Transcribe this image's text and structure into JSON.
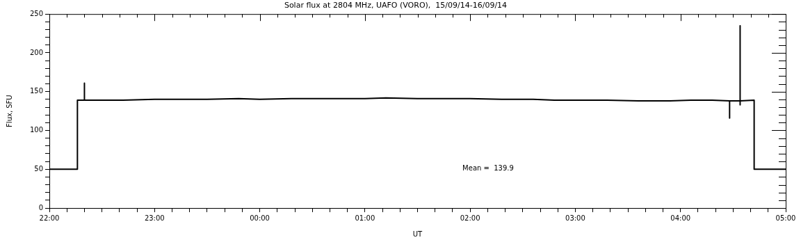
{
  "chart_data": {
    "type": "line",
    "title": "Solar flux at 2804 MHz, UAFO (VORO),  15/09/14-16/09/14",
    "xlabel": "UT",
    "ylabel": "Flux, SFU",
    "annotations": [
      "Mean =  139.9"
    ],
    "color": "#000000",
    "x": [
      "--09-15T22:00",
      "--09-15T22:16",
      "--09-15T22:16",
      "--09-15T22:20",
      "--09-15T22:20",
      "--09-15T22:20",
      "--09-15T22:30",
      "--09-15T22:42",
      "--09-15T23:00",
      "--09-15T23:18",
      "--09-15T23:30",
      "--09-15T23:48",
      "--09-16T00:00",
      "--09-16T00:18",
      "--09-16T00:36",
      "--09-16T01:00",
      "--09-16T01:12",
      "--09-16T01:30",
      "--09-16T01:48",
      "--09-16T02:00",
      "--09-16T02:18",
      "--09-16T02:36",
      "--09-16T02:48",
      "--09-16T03:00",
      "--09-16T03:18",
      "--09-16T03:36",
      "--09-16T03:54",
      "--09-16T04:06",
      "--09-16T04:18",
      "--09-16T04:28",
      "--09-16T04:28",
      "--09-16T04:28",
      "--09-16T04:34",
      "--09-16T04:34",
      "--09-16T04:34",
      "--09-16T04:34",
      "--09-16T04:42",
      "--09-16T04:42",
      "--09-16T05:00"
    ],
    "values": [
      50,
      50,
      139,
      139,
      161,
      139,
      139,
      139,
      140,
      140,
      140,
      141,
      140,
      141,
      141,
      141,
      142,
      141,
      141,
      141,
      140,
      140,
      139,
      139,
      139,
      138,
      138,
      139,
      139,
      138,
      116,
      138,
      138,
      235,
      133,
      138,
      139,
      50,
      50
    ],
    "xlim": [
      "--09-15T22:00",
      "--09-16T05:00"
    ],
    "xticks": [
      {
        "value": "--09-15T22:00",
        "label": "22:00"
      },
      {
        "value": "--09-15T22:10",
        "label": null
      },
      {
        "value": "--09-15T22:20",
        "label": null
      },
      {
        "value": "--09-15T22:30",
        "label": null
      },
      {
        "value": "--09-15T22:40",
        "label": null
      },
      {
        "value": "--09-15T22:50",
        "label": null
      },
      {
        "value": "--09-15T23:00",
        "label": "23:00"
      },
      {
        "value": "--09-15T23:10",
        "label": null
      },
      {
        "value": "--09-15T23:20",
        "label": null
      },
      {
        "value": "--09-15T23:30",
        "label": null
      },
      {
        "value": "--09-15T23:40",
        "label": null
      },
      {
        "value": "--09-15T23:50",
        "label": null
      },
      {
        "value": "--09-16T00:00",
        "label": "00:00"
      },
      {
        "value": "--09-16T00:10",
        "label": null
      },
      {
        "value": "--09-16T00:20",
        "label": null
      },
      {
        "value": "--09-16T00:30",
        "label": null
      },
      {
        "value": "--09-16T00:40",
        "label": null
      },
      {
        "value": "--09-16T00:50",
        "label": null
      },
      {
        "value": "--09-16T01:00",
        "label": "01:00"
      },
      {
        "value": "--09-16T01:10",
        "label": null
      },
      {
        "value": "--09-16T01:20",
        "label": null
      },
      {
        "value": "--09-16T01:30",
        "label": null
      },
      {
        "value": "--09-16T01:40",
        "label": null
      },
      {
        "value": "--09-16T01:50",
        "label": null
      },
      {
        "value": "--09-16T02:00",
        "label": "02:00"
      },
      {
        "value": "--09-16T02:10",
        "label": null
      },
      {
        "value": "--09-16T02:20",
        "label": null
      },
      {
        "value": "--09-16T02:30",
        "label": null
      },
      {
        "value": "--09-16T02:40",
        "label": null
      },
      {
        "value": "--09-16T02:50",
        "label": null
      },
      {
        "value": "--09-16T03:00",
        "label": "03:00"
      },
      {
        "value": "--09-16T03:10",
        "label": null
      },
      {
        "value": "--09-16T03:20",
        "label": null
      },
      {
        "value": "--09-16T03:30",
        "label": null
      },
      {
        "value": "--09-16T03:40",
        "label": null
      },
      {
        "value": "--09-16T03:50",
        "label": null
      },
      {
        "value": "--09-16T04:00",
        "label": "04:00"
      },
      {
        "value": "--09-16T04:10",
        "label": null
      },
      {
        "value": "--09-16T04:20",
        "label": null
      },
      {
        "value": "--09-16T04:30",
        "label": null
      },
      {
        "value": "--09-16T04:40",
        "label": null
      },
      {
        "value": "--09-16T04:50",
        "label": null
      },
      {
        "value": "--09-16T05:00",
        "label": "05:00"
      }
    ],
    "ylim": [
      0,
      250
    ],
    "yticks": [
      0,
      {
        "value": 10,
        "label": null
      },
      {
        "value": 20,
        "label": null
      },
      {
        "value": 30,
        "label": null
      },
      {
        "value": 40,
        "label": null
      },
      50,
      {
        "value": 60,
        "label": null
      },
      {
        "value": 70,
        "label": null
      },
      {
        "value": 80,
        "label": null
      },
      {
        "value": 90,
        "label": null
      },
      100,
      {
        "value": 110,
        "label": null
      },
      {
        "value": 120,
        "label": null
      },
      {
        "value": 130,
        "label": null
      },
      {
        "value": 140,
        "label": null
      },
      150,
      {
        "value": 160,
        "label": null
      },
      {
        "value": 170,
        "label": null
      },
      {
        "value": 180,
        "label": null
      },
      {
        "value": 190,
        "label": null
      },
      200,
      {
        "value": 210,
        "label": null
      },
      {
        "value": 220,
        "label": null
      },
      {
        "value": 230,
        "label": null
      },
      {
        "value": 240,
        "label": null
      },
      250
    ]
  }
}
